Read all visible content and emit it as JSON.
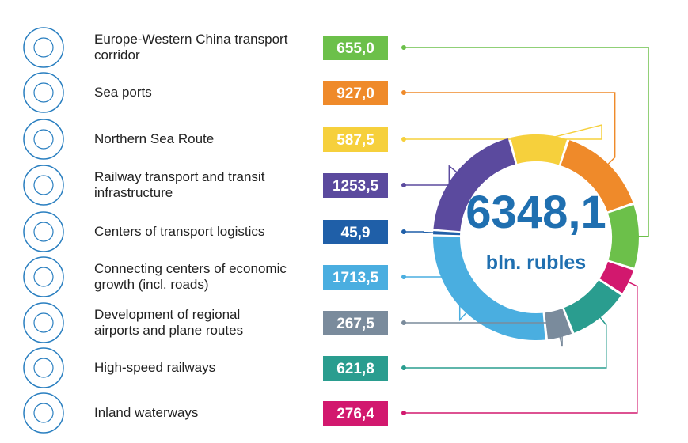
{
  "chart_data": {
    "type": "donut",
    "categories": [
      "Europe-Western China transport\ncorridor",
      "Sea ports",
      "Northern Sea Route",
      "Railway transport and transit\ninfrastructure",
      "Centers of transport logistics",
      "Connecting centers of economic\ngrowth (incl. roads)",
      "Development of regional\nairports and plane routes",
      "High-speed railways",
      "Inland waterways"
    ],
    "values": [
      655.0,
      927.0,
      587.5,
      1253.5,
      45.9,
      1713.5,
      267.5,
      621.8,
      276.4
    ],
    "value_labels": [
      "655,0",
      "927,0",
      "587,5",
      "1253,5",
      "45,9",
      "1713,5",
      "267,5",
      "621,8",
      "276,4"
    ],
    "colors": [
      "#6cc04a",
      "#ef8a2a",
      "#f6d03c",
      "#5b4a9e",
      "#1f5fa8",
      "#4aaee0",
      "#7a8b9c",
      "#2a9d8f",
      "#d2186e"
    ],
    "total": {
      "value": 6348.1,
      "label": "6348,1"
    },
    "unit": "bln. rubles"
  }
}
